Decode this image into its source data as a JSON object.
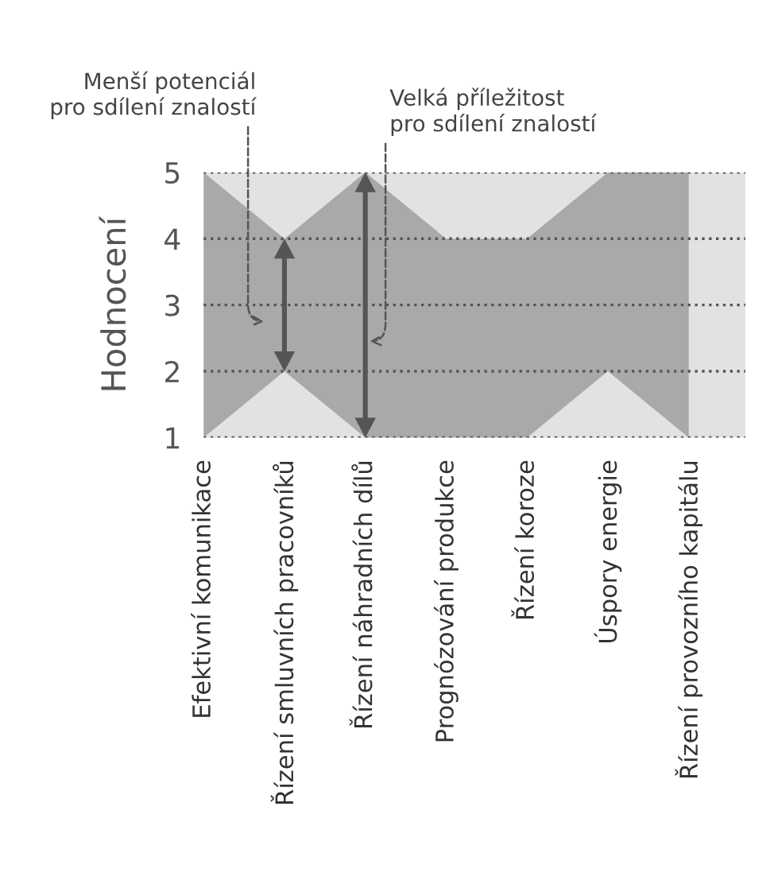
{
  "chart_data": {
    "type": "area",
    "stacked": true,
    "ylabel": "Hodnocení",
    "categories": [
      "Efektivní komunikace",
      "Řízení smluvních pracovníků",
      "Řízení náhradních dílů",
      "Prognózování produkce",
      "Řízení koroze",
      "Úspory energie",
      "Řízení provozního kapitálu"
    ],
    "series": [
      {
        "color": "#e2e2e2",
        "values": [
          1,
          2,
          1,
          1,
          1,
          2,
          1
        ]
      },
      {
        "color": "#a9a9a9",
        "values": [
          4,
          2,
          4,
          3,
          3,
          3,
          4
        ]
      }
    ],
    "bands": [
      {
        "axis": "y",
        "from": 1,
        "to": 5,
        "color": "#e2e2e2"
      }
    ],
    "ylim": [
      1,
      5
    ],
    "yticks": [
      1,
      2,
      3,
      4,
      5
    ],
    "grid": "y",
    "line_style": "dotted",
    "annotations": [
      "Menší potenciál\npro sdílení znalostí",
      "Velká příležitost\npro sdílení znalostí"
    ]
  }
}
